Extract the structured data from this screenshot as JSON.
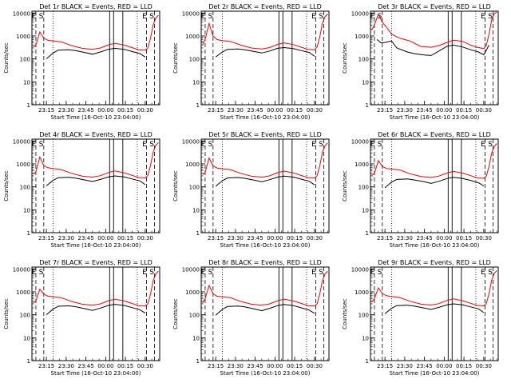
{
  "colors": {
    "events": "#000000",
    "lld": "#ff0000",
    "axes": "#000000",
    "background": "#ffffff"
  },
  "shared": {
    "x_axis_title": "Start Time (16-Oct-10 23:04:00)",
    "y_axis_title": "Counts/sec",
    "x_tick_labels": [
      "23:15",
      "23:30",
      "23:45",
      "00:00",
      "00:15",
      "00:30"
    ],
    "x_tick_minutes": [
      11,
      26,
      41,
      56,
      71,
      86
    ],
    "xlim_minutes_after_start": [
      0,
      97
    ],
    "y_tick_labels": [
      "1",
      "10",
      "100",
      "1000",
      "10000"
    ],
    "ylim": [
      1,
      12000
    ],
    "y_scale": "log",
    "band_labels": [
      "E",
      "S",
      "E",
      "S"
    ],
    "solid_markers_minutes": [
      59,
      62,
      69
    ],
    "dashed_markers_minutes": [
      3,
      9,
      87,
      93
    ],
    "dotted_markers_minutes": [
      16,
      80
    ]
  },
  "chart_data": [
    {
      "type": "line",
      "title": "Det 1r BLACK = Events, RED = LLD",
      "series": [
        {
          "name": "Events",
          "x": [
            11,
            16,
            20,
            28,
            33,
            40,
            46,
            52,
            58,
            63,
            70,
            76,
            82,
            86
          ],
          "values": [
            100,
            180,
            240,
            250,
            230,
            190,
            160,
            200,
            260,
            290,
            260,
            210,
            170,
            120
          ]
        },
        {
          "name": "LLD",
          "x": [
            1,
            3,
            6,
            9,
            12,
            16,
            22,
            30,
            38,
            46,
            52,
            58,
            63,
            70,
            76,
            81,
            86,
            88,
            90,
            92,
            94,
            96
          ],
          "values": [
            330,
            400,
            1500,
            800,
            650,
            600,
            560,
            380,
            290,
            260,
            300,
            410,
            480,
            400,
            310,
            250,
            240,
            300,
            800,
            3000,
            6000,
            8000
          ]
        }
      ]
    },
    {
      "type": "line",
      "title": "Det 2r BLACK = Events, RED = LLD",
      "series": [
        {
          "name": "Events",
          "x": [
            11,
            16,
            20,
            28,
            33,
            40,
            46,
            52,
            58,
            63,
            70,
            76,
            82,
            86
          ],
          "values": [
            120,
            200,
            260,
            270,
            250,
            210,
            180,
            220,
            290,
            310,
            280,
            230,
            190,
            130
          ]
        },
        {
          "name": "LLD",
          "x": [
            1,
            3,
            6,
            9,
            12,
            16,
            22,
            30,
            38,
            46,
            52,
            58,
            63,
            70,
            76,
            81,
            86,
            88,
            90,
            92,
            94,
            96
          ],
          "values": [
            400,
            700,
            3500,
            1000,
            700,
            620,
            580,
            400,
            300,
            270,
            310,
            430,
            500,
            420,
            320,
            260,
            250,
            330,
            900,
            3500,
            7000,
            9000
          ]
        }
      ]
    },
    {
      "type": "line",
      "title": "Det 3r BLACK = Events, RED = LLD",
      "series": [
        {
          "name": "Events",
          "x": [
            5,
            8,
            11,
            16,
            20,
            28,
            33,
            40,
            46,
            52,
            58,
            63,
            70,
            76,
            82,
            86,
            90
          ],
          "values": [
            700,
            500,
            520,
            600,
            300,
            200,
            170,
            150,
            140,
            220,
            350,
            400,
            330,
            250,
            200,
            150,
            400
          ]
        },
        {
          "name": "LLD",
          "x": [
            1,
            3,
            6,
            9,
            12,
            16,
            22,
            30,
            38,
            46,
            52,
            58,
            63,
            70,
            76,
            81,
            86,
            88,
            90,
            92,
            94,
            96
          ],
          "values": [
            1800,
            3000,
            9000,
            4000,
            2500,
            1200,
            800,
            600,
            350,
            320,
            380,
            520,
            650,
            580,
            400,
            320,
            280,
            400,
            1200,
            5000,
            9500,
            11000
          ]
        }
      ]
    },
    {
      "type": "line",
      "title": "Det 4r BLACK = Events, RED = LLD",
      "series": [
        {
          "name": "Events",
          "x": [
            11,
            16,
            20,
            28,
            33,
            40,
            46,
            52,
            58,
            63,
            70,
            76,
            82,
            86
          ],
          "values": [
            110,
            190,
            250,
            260,
            240,
            200,
            170,
            210,
            270,
            300,
            270,
            220,
            180,
            125
          ]
        },
        {
          "name": "LLD",
          "x": [
            1,
            3,
            6,
            9,
            12,
            16,
            22,
            30,
            38,
            46,
            52,
            58,
            63,
            70,
            76,
            81,
            86,
            88,
            90,
            92,
            94,
            96
          ],
          "values": [
            350,
            450,
            2000,
            850,
            680,
            620,
            570,
            390,
            295,
            265,
            305,
            420,
            490,
            410,
            315,
            255,
            245,
            310,
            850,
            3200,
            6500,
            8500
          ]
        }
      ]
    },
    {
      "type": "line",
      "title": "Det 5r BLACK = Events, RED = LLD",
      "series": [
        {
          "name": "Events",
          "x": [
            11,
            16,
            20,
            28,
            33,
            40,
            46,
            52,
            58,
            63,
            70,
            76,
            82,
            86
          ],
          "values": [
            105,
            185,
            245,
            255,
            235,
            195,
            165,
            205,
            265,
            295,
            265,
            215,
            175,
            122
          ]
        },
        {
          "name": "LLD",
          "x": [
            1,
            3,
            6,
            9,
            12,
            16,
            22,
            30,
            38,
            46,
            52,
            58,
            63,
            70,
            76,
            81,
            86,
            88,
            90,
            92,
            94,
            96
          ],
          "values": [
            340,
            420,
            1800,
            820,
            660,
            610,
            565,
            385,
            292,
            262,
            302,
            415,
            485,
            405,
            312,
            252,
            242,
            305,
            820,
            3100,
            6200,
            8200
          ]
        }
      ]
    },
    {
      "type": "line",
      "title": "Det 6r BLACK = Events, RED = LLD",
      "series": [
        {
          "name": "Events",
          "x": [
            11,
            16,
            20,
            28,
            33,
            40,
            46,
            52,
            58,
            63,
            70,
            76,
            82,
            86
          ],
          "values": [
            90,
            160,
            210,
            220,
            200,
            170,
            140,
            175,
            230,
            260,
            230,
            190,
            150,
            110
          ]
        },
        {
          "name": "LLD",
          "x": [
            1,
            3,
            6,
            9,
            12,
            16,
            22,
            30,
            38,
            46,
            52,
            58,
            63,
            70,
            76,
            81,
            86,
            88,
            90,
            92,
            94,
            96
          ],
          "values": [
            320,
            380,
            1400,
            780,
            630,
            590,
            550,
            370,
            285,
            255,
            295,
            400,
            470,
            395,
            305,
            245,
            235,
            295,
            780,
            2900,
            5800,
            7800
          ]
        }
      ]
    },
    {
      "type": "line",
      "title": "Det 7r BLACK = Events, RED = LLD",
      "series": [
        {
          "name": "Events",
          "x": [
            11,
            16,
            20,
            28,
            33,
            40,
            46,
            52,
            58,
            63,
            70,
            76,
            82,
            86
          ],
          "values": [
            100,
            175,
            235,
            245,
            225,
            185,
            155,
            195,
            255,
            285,
            255,
            205,
            165,
            118
          ]
        },
        {
          "name": "LLD",
          "x": [
            1,
            3,
            6,
            9,
            12,
            16,
            22,
            30,
            38,
            46,
            52,
            58,
            63,
            70,
            76,
            81,
            86,
            88,
            90,
            92,
            94,
            96
          ],
          "values": [
            330,
            400,
            1300,
            800,
            650,
            600,
            560,
            380,
            290,
            260,
            300,
            410,
            480,
            400,
            310,
            250,
            240,
            300,
            800,
            3000,
            6000,
            8000
          ]
        }
      ]
    },
    {
      "type": "line",
      "title": "Det 8r BLACK = Events, RED = LLD",
      "series": [
        {
          "name": "Events",
          "x": [
            11,
            16,
            20,
            28,
            33,
            40,
            46,
            52,
            58,
            63,
            70,
            76,
            82,
            86
          ],
          "values": [
            95,
            170,
            230,
            240,
            220,
            180,
            150,
            190,
            250,
            280,
            250,
            200,
            160,
            115
          ]
        },
        {
          "name": "LLD",
          "x": [
            1,
            3,
            6,
            9,
            12,
            16,
            22,
            30,
            38,
            46,
            52,
            58,
            63,
            70,
            76,
            81,
            86,
            88,
            90,
            92,
            94,
            96
          ],
          "values": [
            320,
            500,
            1900,
            820,
            640,
            600,
            560,
            380,
            290,
            260,
            300,
            410,
            480,
            400,
            310,
            250,
            240,
            300,
            800,
            3000,
            6000,
            8000
          ]
        }
      ]
    },
    {
      "type": "line",
      "title": "Det 9r BLACK = Events, RED = LLD",
      "series": [
        {
          "name": "Events",
          "x": [
            11,
            16,
            20,
            28,
            33,
            40,
            46,
            52,
            58,
            63,
            70,
            76,
            82,
            86
          ],
          "values": [
            110,
            190,
            250,
            260,
            240,
            200,
            170,
            210,
            270,
            300,
            270,
            220,
            180,
            125
          ]
        },
        {
          "name": "LLD",
          "x": [
            1,
            3,
            6,
            9,
            12,
            16,
            22,
            30,
            38,
            46,
            52,
            58,
            63,
            70,
            76,
            81,
            86,
            88,
            90,
            92,
            94,
            96
          ],
          "values": [
            350,
            500,
            1500,
            850,
            680,
            620,
            570,
            390,
            295,
            265,
            305,
            420,
            490,
            410,
            315,
            255,
            245,
            310,
            850,
            3200,
            6500,
            8500
          ]
        }
      ]
    }
  ]
}
